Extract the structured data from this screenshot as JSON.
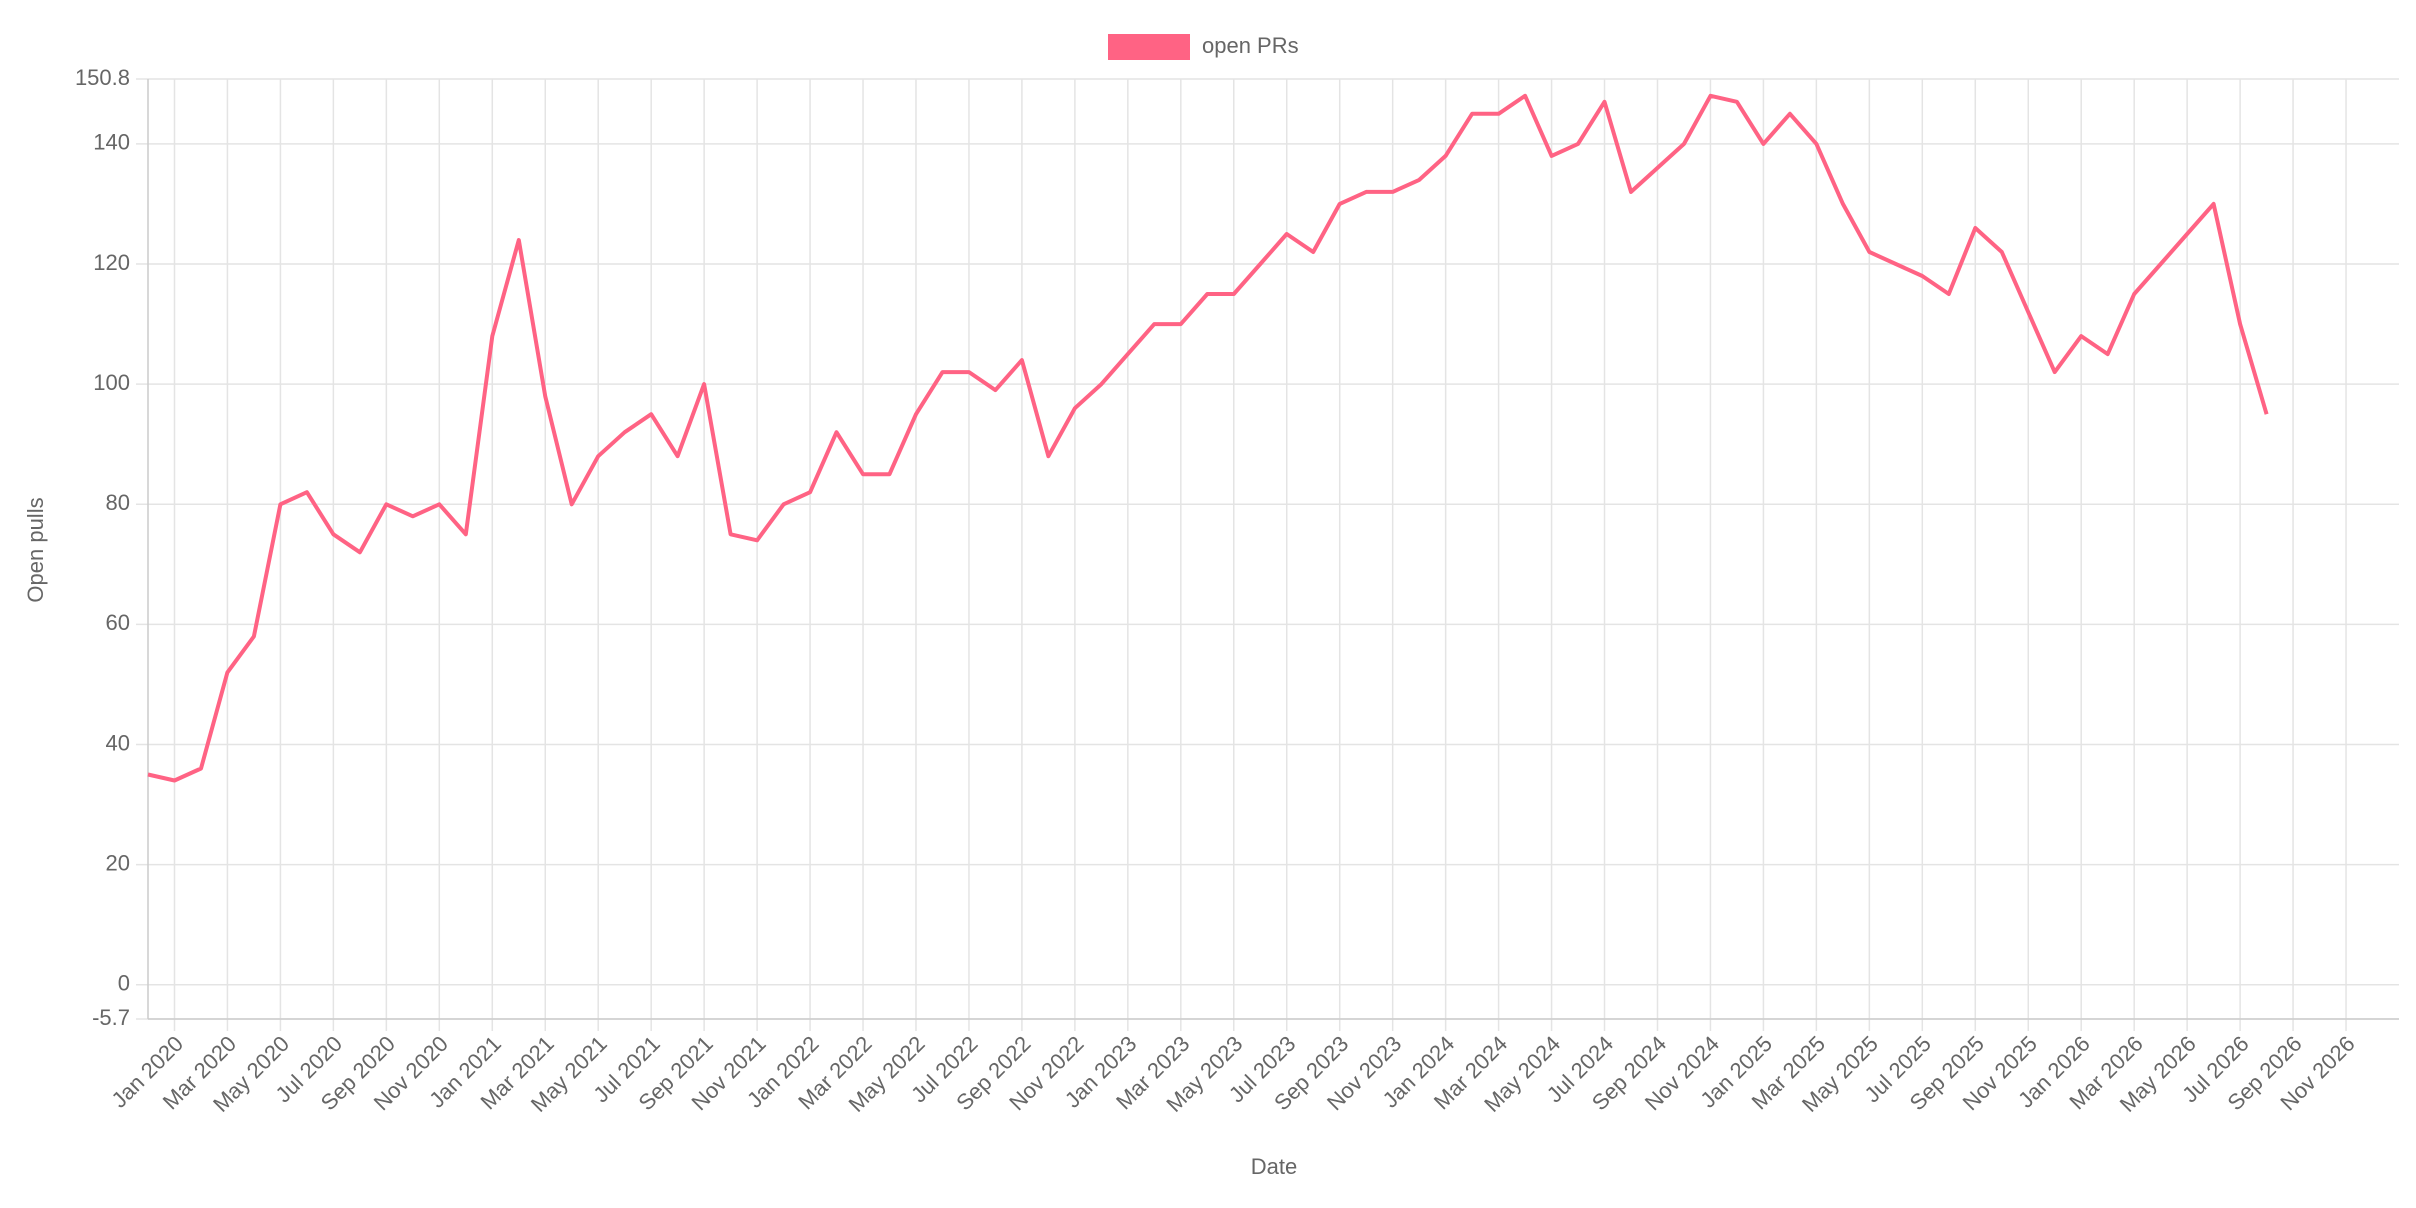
{
  "chart_data": {
    "type": "line",
    "x_title": "Date",
    "y_title": "Open pulls",
    "x": [
      "2019-12",
      "2020-01",
      "2020-02",
      "2020-03",
      "2020-04",
      "2020-05",
      "2020-06",
      "2020-07",
      "2020-08",
      "2020-09",
      "2020-10",
      "2020-11",
      "2020-12",
      "2021-01",
      "2021-02",
      "2021-03",
      "2021-04",
      "2021-05",
      "2021-06",
      "2021-07",
      "2021-08",
      "2021-09",
      "2021-10",
      "2021-11",
      "2021-12",
      "2022-01",
      "2022-02",
      "2022-03",
      "2022-04",
      "2022-05",
      "2022-06",
      "2022-07",
      "2022-08",
      "2022-09",
      "2022-10",
      "2022-11",
      "2022-12",
      "2023-01",
      "2023-02",
      "2023-03",
      "2023-04",
      "2023-05",
      "2023-06",
      "2023-07",
      "2023-08",
      "2023-09",
      "2023-10",
      "2023-11",
      "2023-12",
      "2024-01",
      "2024-02",
      "2024-03",
      "2024-04",
      "2024-05",
      "2024-06",
      "2024-07",
      "2024-08",
      "2024-09",
      "2024-10",
      "2024-11",
      "2024-12",
      "2025-01",
      "2025-02",
      "2025-03",
      "2025-04",
      "2025-05",
      "2025-06",
      "2025-07",
      "2025-08",
      "2025-09",
      "2025-10",
      "2025-11",
      "2025-12",
      "2026-01",
      "2026-02",
      "2026-03",
      "2026-04",
      "2026-05",
      "2026-06",
      "2026-07",
      "2026-08"
    ],
    "series": [
      {
        "name": "open PRs",
        "color": "#ff6384",
        "values": [
          35,
          34,
          36,
          52,
          58,
          80,
          82,
          75,
          72,
          80,
          78,
          80,
          75,
          108,
          124,
          98,
          80,
          88,
          92,
          95,
          88,
          100,
          75,
          74,
          80,
          82,
          92,
          85,
          85,
          95,
          102,
          102,
          99,
          104,
          88,
          96,
          100,
          105,
          110,
          110,
          115,
          115,
          120,
          125,
          122,
          130,
          132,
          132,
          134,
          138,
          145,
          145,
          148,
          138,
          140,
          147,
          132,
          136,
          140,
          148,
          147,
          140,
          145,
          140,
          130,
          122,
          120,
          118,
          115,
          126,
          122,
          112,
          102,
          108,
          105,
          115,
          120,
          125,
          130,
          110,
          95
        ]
      }
    ],
    "xlim": [
      "2019-12",
      "2027-01"
    ],
    "xticks": [
      {
        "value": "2020-01",
        "label": "Jan 2020"
      },
      {
        "value": "2020-03",
        "label": "Mar 2020"
      },
      {
        "value": "2020-05",
        "label": "May 2020"
      },
      {
        "value": "2020-07",
        "label": "Jul 2020"
      },
      {
        "value": "2020-09",
        "label": "Sep 2020"
      },
      {
        "value": "2020-11",
        "label": "Nov 2020"
      },
      {
        "value": "2021-01",
        "label": "Jan 2021"
      },
      {
        "value": "2021-03",
        "label": "Mar 2021"
      },
      {
        "value": "2021-05",
        "label": "May 2021"
      },
      {
        "value": "2021-07",
        "label": "Jul 2021"
      },
      {
        "value": "2021-09",
        "label": "Sep 2021"
      },
      {
        "value": "2021-11",
        "label": "Nov 2021"
      },
      {
        "value": "2022-01",
        "label": "Jan 2022"
      },
      {
        "value": "2022-03",
        "label": "Mar 2022"
      },
      {
        "value": "2022-05",
        "label": "May 2022"
      },
      {
        "value": "2022-07",
        "label": "Jul 2022"
      },
      {
        "value": "2022-09",
        "label": "Sep 2022"
      },
      {
        "value": "2022-11",
        "label": "Nov 2022"
      },
      {
        "value": "2023-01",
        "label": "Jan 2023"
      },
      {
        "value": "2023-03",
        "label": "Mar 2023"
      },
      {
        "value": "2023-05",
        "label": "May 2023"
      },
      {
        "value": "2023-07",
        "label": "Jul 2023"
      },
      {
        "value": "2023-09",
        "label": "Sep 2023"
      },
      {
        "value": "2023-11",
        "label": "Nov 2023"
      },
      {
        "value": "2024-01",
        "label": "Jan 2024"
      },
      {
        "value": "2024-03",
        "label": "Mar 2024"
      },
      {
        "value": "2024-05",
        "label": "May 2024"
      },
      {
        "value": "2024-07",
        "label": "Jul 2024"
      },
      {
        "value": "2024-09",
        "label": "Sep 2024"
      },
      {
        "value": "2024-11",
        "label": "Nov 2024"
      },
      {
        "value": "2025-01",
        "label": "Jan 2025"
      },
      {
        "value": "2025-03",
        "label": "Mar 2025"
      },
      {
        "value": "2025-05",
        "label": "May 2025"
      },
      {
        "value": "2025-07",
        "label": "Jul 2025"
      },
      {
        "value": "2025-09",
        "label": "Sep 2025"
      },
      {
        "value": "2025-11",
        "label": "Nov 2025"
      },
      {
        "value": "2026-01",
        "label": "Jan 2026"
      },
      {
        "value": "2026-03",
        "label": "Mar 2026"
      },
      {
        "value": "2026-05",
        "label": "May 2026"
      },
      {
        "value": "2026-07",
        "label": "Jul 2026"
      },
      {
        "value": "2026-09",
        "label": "Sep 2026"
      },
      {
        "value": "2026-11",
        "label": "Nov 2026"
      }
    ],
    "ylim": [
      -5.7,
      150.8
    ],
    "yticks": [
      -5.7,
      0,
      20,
      40,
      60,
      80,
      100,
      120,
      140,
      150.8
    ],
    "grid": true,
    "legend": "top"
  }
}
